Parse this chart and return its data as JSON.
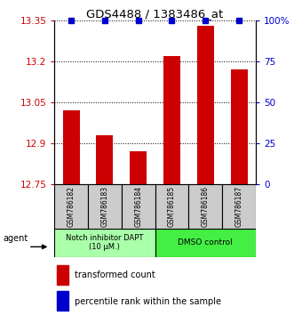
{
  "title": "GDS4488 / 1383486_at",
  "samples": [
    "GSM786182",
    "GSM786183",
    "GSM786184",
    "GSM786185",
    "GSM786186",
    "GSM786187"
  ],
  "red_values": [
    13.02,
    12.93,
    12.87,
    13.22,
    13.33,
    13.17
  ],
  "blue_values": [
    100,
    100,
    100,
    100,
    100,
    100
  ],
  "ylim_left": [
    12.75,
    13.35
  ],
  "ylim_right": [
    0,
    100
  ],
  "yticks_left": [
    12.75,
    12.9,
    13.05,
    13.2,
    13.35
  ],
  "yticks_right": [
    0,
    25,
    50,
    75,
    100
  ],
  "group1_label": "Notch inhibitor DAPT\n(10 μM.)",
  "group2_label": "DMSO control",
  "group1_indices": [
    0,
    1,
    2
  ],
  "group2_indices": [
    3,
    4,
    5
  ],
  "bar_color": "#CC0000",
  "dot_color": "#0000CC",
  "group1_bg": "#AAFFAA",
  "group2_bg": "#44EE44",
  "sample_bg": "#CCCCCC",
  "legend_red_label": "transformed count",
  "legend_blue_label": "percentile rank within the sample",
  "agent_label": "agent",
  "bar_width": 0.5
}
